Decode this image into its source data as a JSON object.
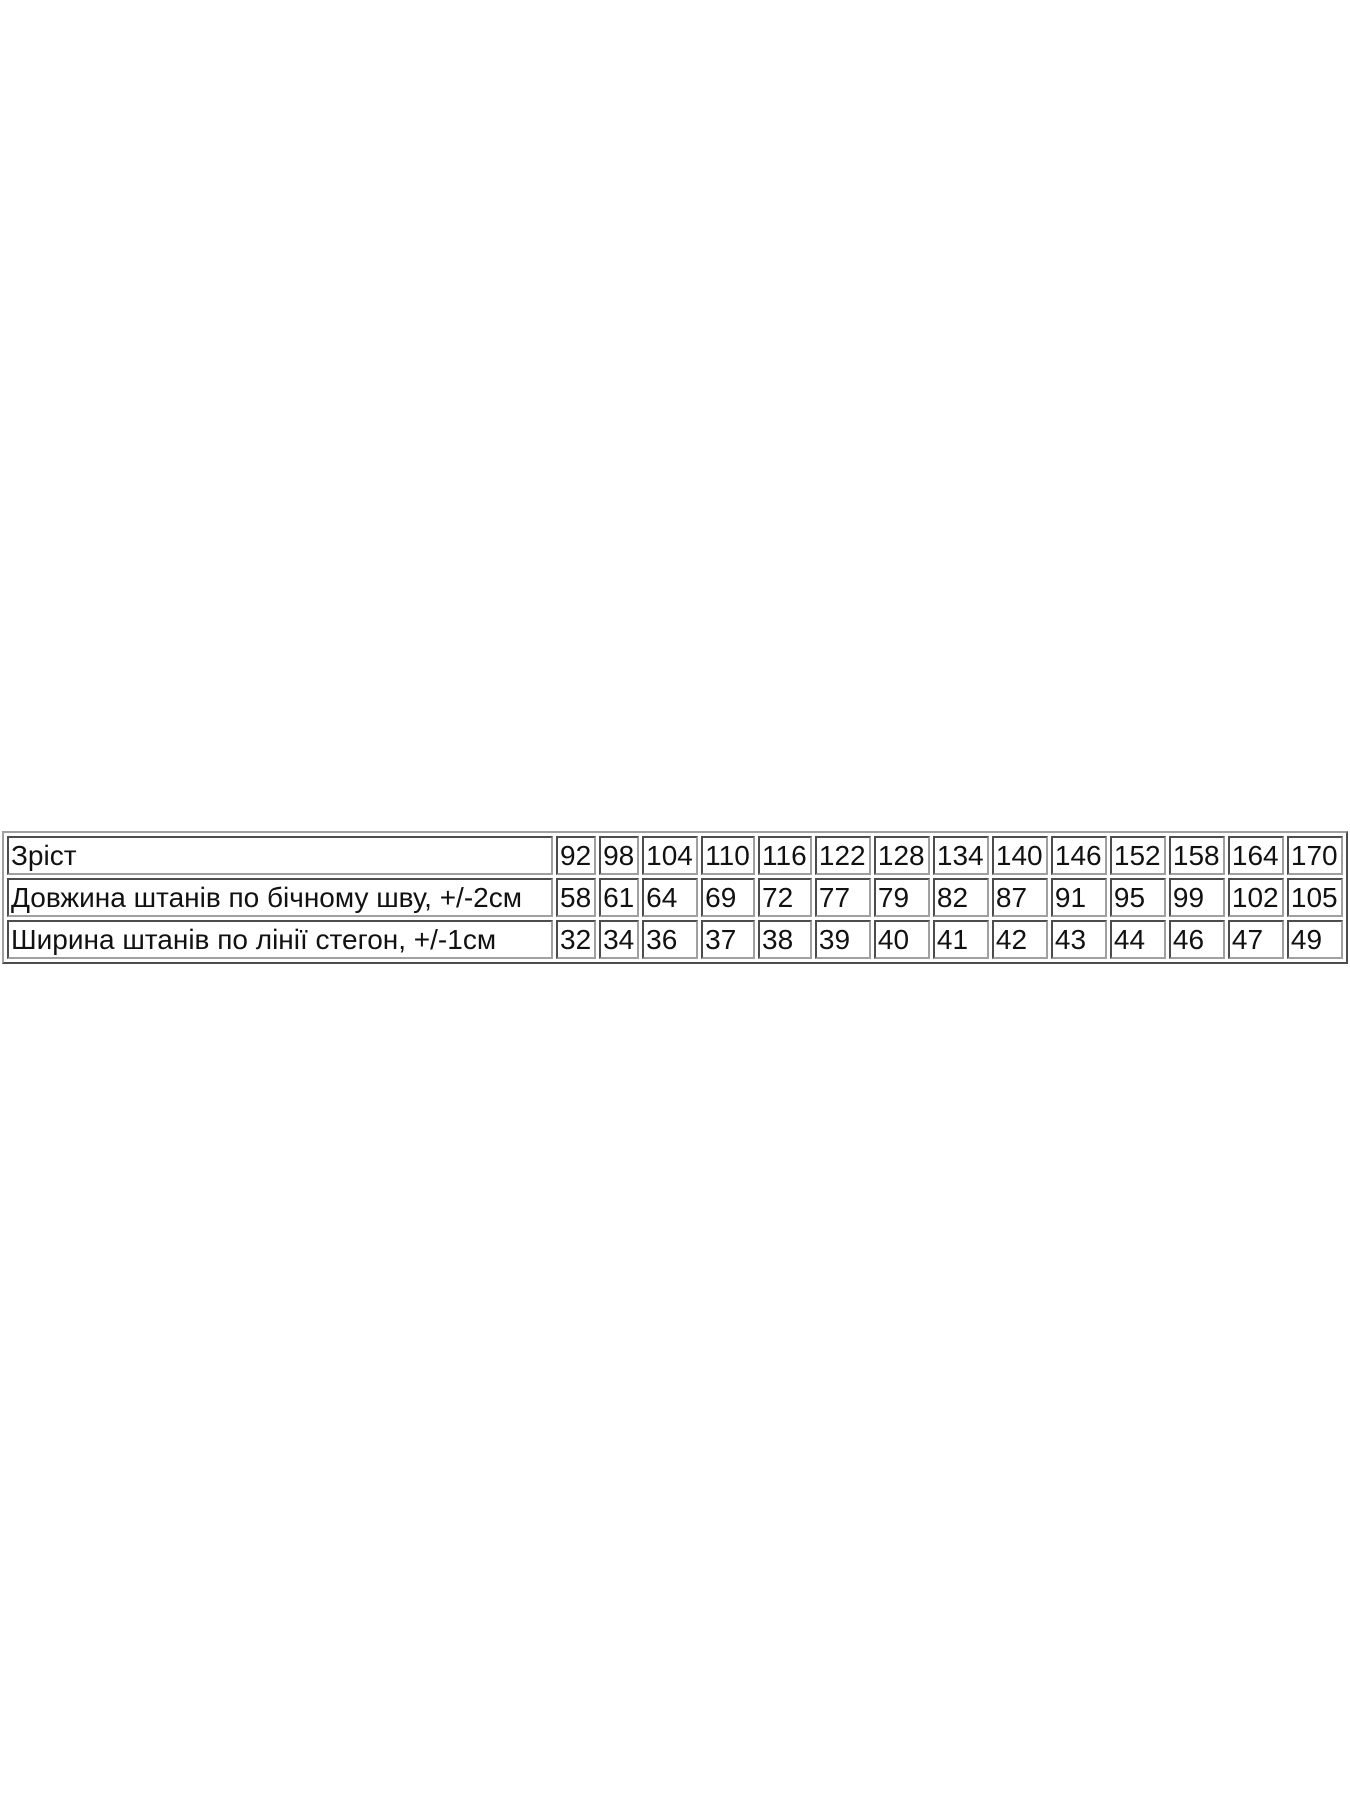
{
  "size_table": {
    "rows": [
      {
        "label": "Зріст",
        "values": [
          "92",
          "98",
          "104",
          "110",
          "116",
          "122",
          "128",
          "134",
          "140",
          "146",
          "152",
          "158",
          "164",
          "170"
        ]
      },
      {
        "label": "Довжина штанів по бічному шву, +/-2см",
        "values": [
          "58",
          "61",
          "64",
          "69",
          "72",
          "77",
          "79",
          "82",
          "87",
          "91",
          "95",
          "99",
          "102",
          "105"
        ]
      },
      {
        "label": "Ширина штанів по лінії стегон, +/-1см",
        "values": [
          "32",
          "34",
          "36",
          "37",
          "38",
          "39",
          "40",
          "41",
          "42",
          "43",
          "44",
          "46",
          "47",
          "49"
        ]
      }
    ]
  }
}
